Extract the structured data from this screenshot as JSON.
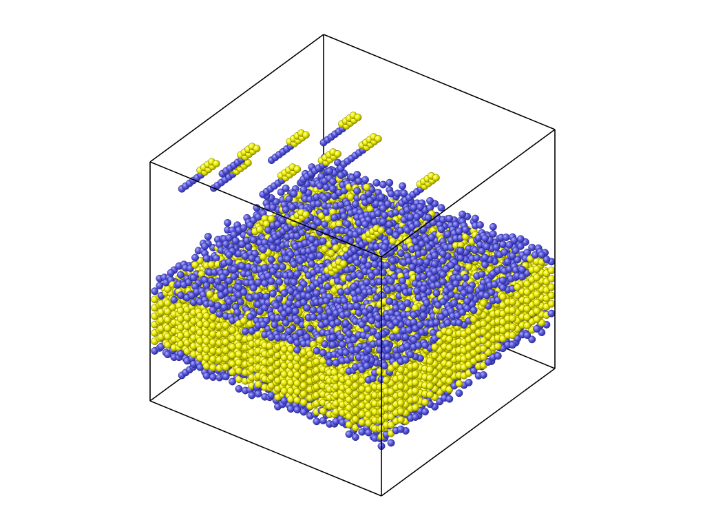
{
  "viewer": {
    "background_color": "#ffffff",
    "box_color": "#000000"
  },
  "colors": {
    "blue_atom": "#5b5be0",
    "blue_atom_highlight": "#a8a8ff",
    "blue_atom_shadow": "#2a2a9a",
    "yellow_atom": "#eeee00",
    "yellow_atom_highlight": "#ffffa0",
    "yellow_atom_shadow": "#8a8a00"
  },
  "icons": {
    "simulation_box": "cube-outline-icon"
  }
}
